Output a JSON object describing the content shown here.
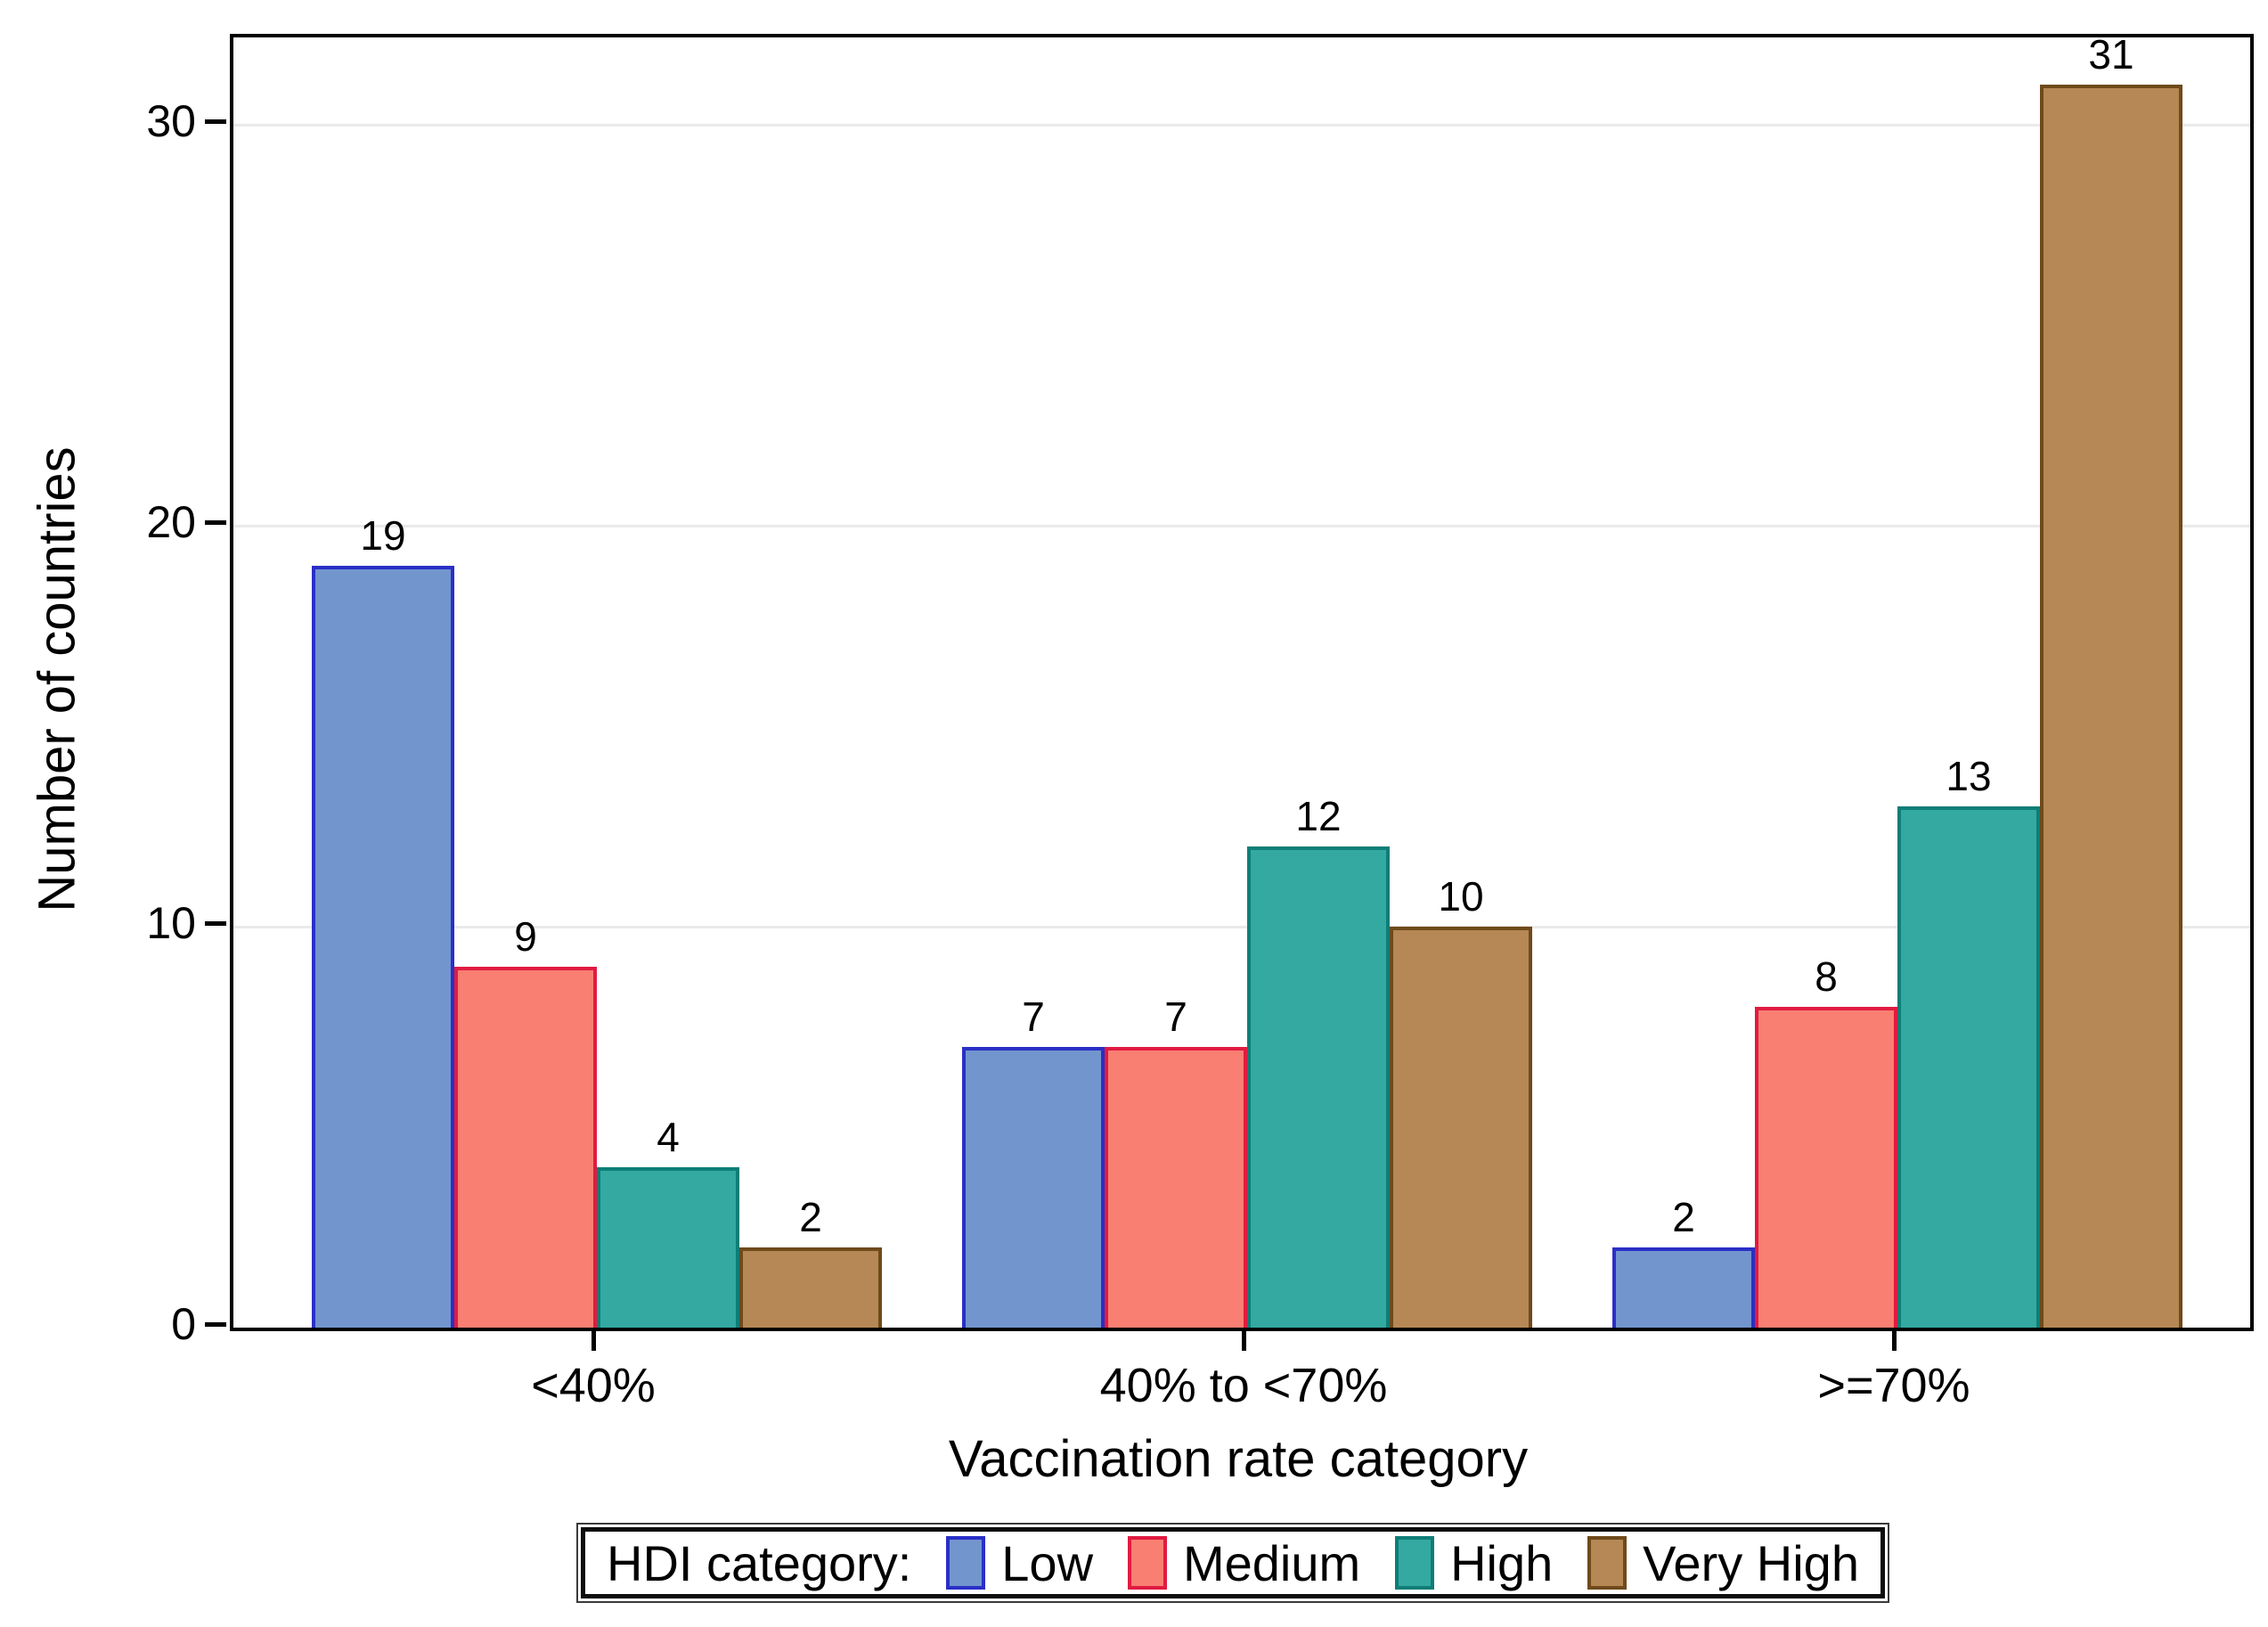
{
  "chart_data": {
    "type": "bar",
    "title": "",
    "xlabel": "Vaccination rate category",
    "ylabel": "Number of countries",
    "legend_title": "HDI category:",
    "legend_position": "bottom",
    "grid": "horizontal",
    "grid_color": "#eaeaea",
    "axis_color": "#000000",
    "background": "#ffffff",
    "categories": [
      "<40%",
      "40% to <70%",
      ">=70%"
    ],
    "series": [
      {
        "name": "Low",
        "values": [
          19,
          7,
          2
        ],
        "fill": "#7295ce",
        "border": "#2a2fc6"
      },
      {
        "name": "Medium",
        "values": [
          9,
          7,
          8
        ],
        "fill": "#f97f72",
        "border": "#e01b41"
      },
      {
        "name": "High",
        "values": [
          4,
          12,
          13
        ],
        "fill": "#33a9a1",
        "border": "#0e7e77"
      },
      {
        "name": "Very High",
        "values": [
          2,
          10,
          31
        ],
        "fill": "#b58855",
        "border": "#6f4a1b"
      }
    ],
    "value_labels": true,
    "yticks": [
      0,
      10,
      20,
      30
    ],
    "ylim": [
      0,
      32.2
    ]
  }
}
